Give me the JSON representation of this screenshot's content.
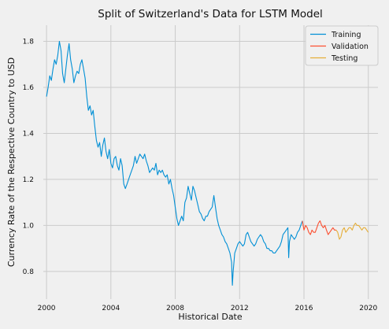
{
  "chart_data": {
    "type": "line",
    "title": "Split of Switzerland's Data for LSTM Model",
    "xlabel": "Historical Date",
    "ylabel": "Currency Rate of the Respective Country to USD",
    "xlim": [
      1999.8,
      2020.6
    ],
    "ylim": [
      0.68,
      1.87
    ],
    "xticks": [
      2000,
      2004,
      2008,
      2012,
      2016,
      2020
    ],
    "xtick_labels": [
      "2000",
      "2004",
      "2008",
      "2012",
      "2016",
      "2020"
    ],
    "yticks": [
      0.8,
      1.0,
      1.2,
      1.4,
      1.6,
      1.8
    ],
    "ytick_labels": [
      "0.8",
      "1.0",
      "1.2",
      "1.4",
      "1.6",
      "1.8"
    ],
    "grid": true,
    "legend_position": "top-right",
    "series": [
      {
        "name": "Training",
        "color": "#008fd5",
        "points": [
          [
            2000.0,
            1.56
          ],
          [
            2000.1,
            1.6
          ],
          [
            2000.2,
            1.65
          ],
          [
            2000.3,
            1.63
          ],
          [
            2000.4,
            1.68
          ],
          [
            2000.5,
            1.72
          ],
          [
            2000.6,
            1.7
          ],
          [
            2000.7,
            1.74
          ],
          [
            2000.8,
            1.8
          ],
          [
            2000.9,
            1.76
          ],
          [
            2001.0,
            1.66
          ],
          [
            2001.1,
            1.62
          ],
          [
            2001.2,
            1.68
          ],
          [
            2001.3,
            1.74
          ],
          [
            2001.4,
            1.79
          ],
          [
            2001.5,
            1.72
          ],
          [
            2001.6,
            1.68
          ],
          [
            2001.7,
            1.62
          ],
          [
            2001.8,
            1.65
          ],
          [
            2001.9,
            1.67
          ],
          [
            2002.0,
            1.66
          ],
          [
            2002.1,
            1.7
          ],
          [
            2002.2,
            1.72
          ],
          [
            2002.3,
            1.68
          ],
          [
            2002.4,
            1.64
          ],
          [
            2002.5,
            1.56
          ],
          [
            2002.6,
            1.5
          ],
          [
            2002.7,
            1.52
          ],
          [
            2002.8,
            1.48
          ],
          [
            2002.9,
            1.5
          ],
          [
            2003.0,
            1.43
          ],
          [
            2003.1,
            1.37
          ],
          [
            2003.2,
            1.34
          ],
          [
            2003.3,
            1.36
          ],
          [
            2003.4,
            1.3
          ],
          [
            2003.5,
            1.35
          ],
          [
            2003.6,
            1.38
          ],
          [
            2003.7,
            1.32
          ],
          [
            2003.8,
            1.29
          ],
          [
            2003.9,
            1.33
          ],
          [
            2004.0,
            1.27
          ],
          [
            2004.1,
            1.25
          ],
          [
            2004.2,
            1.29
          ],
          [
            2004.3,
            1.3
          ],
          [
            2004.4,
            1.26
          ],
          [
            2004.5,
            1.24
          ],
          [
            2004.6,
            1.29
          ],
          [
            2004.7,
            1.26
          ],
          [
            2004.8,
            1.18
          ],
          [
            2004.9,
            1.16
          ],
          [
            2005.0,
            1.18
          ],
          [
            2005.1,
            1.2
          ],
          [
            2005.2,
            1.22
          ],
          [
            2005.3,
            1.24
          ],
          [
            2005.4,
            1.26
          ],
          [
            2005.5,
            1.3
          ],
          [
            2005.6,
            1.27
          ],
          [
            2005.7,
            1.29
          ],
          [
            2005.8,
            1.31
          ],
          [
            2005.9,
            1.3
          ],
          [
            2006.0,
            1.29
          ],
          [
            2006.1,
            1.31
          ],
          [
            2006.2,
            1.28
          ],
          [
            2006.3,
            1.26
          ],
          [
            2006.4,
            1.23
          ],
          [
            2006.5,
            1.24
          ],
          [
            2006.6,
            1.25
          ],
          [
            2006.7,
            1.24
          ],
          [
            2006.8,
            1.27
          ],
          [
            2006.9,
            1.22
          ],
          [
            2007.0,
            1.24
          ],
          [
            2007.1,
            1.23
          ],
          [
            2007.2,
            1.24
          ],
          [
            2007.3,
            1.22
          ],
          [
            2007.4,
            1.21
          ],
          [
            2007.5,
            1.22
          ],
          [
            2007.6,
            1.18
          ],
          [
            2007.7,
            1.2
          ],
          [
            2007.8,
            1.16
          ],
          [
            2007.9,
            1.13
          ],
          [
            2008.0,
            1.08
          ],
          [
            2008.1,
            1.03
          ],
          [
            2008.2,
            1.0
          ],
          [
            2008.3,
            1.02
          ],
          [
            2008.4,
            1.04
          ],
          [
            2008.5,
            1.02
          ],
          [
            2008.6,
            1.1
          ],
          [
            2008.7,
            1.12
          ],
          [
            2008.8,
            1.17
          ],
          [
            2008.9,
            1.14
          ],
          [
            2009.0,
            1.11
          ],
          [
            2009.1,
            1.17
          ],
          [
            2009.2,
            1.15
          ],
          [
            2009.3,
            1.12
          ],
          [
            2009.4,
            1.09
          ],
          [
            2009.5,
            1.06
          ],
          [
            2009.6,
            1.05
          ],
          [
            2009.7,
            1.03
          ],
          [
            2009.8,
            1.02
          ],
          [
            2009.9,
            1.04
          ],
          [
            2010.0,
            1.04
          ],
          [
            2010.1,
            1.06
          ],
          [
            2010.2,
            1.07
          ],
          [
            2010.3,
            1.08
          ],
          [
            2010.4,
            1.13
          ],
          [
            2010.5,
            1.08
          ],
          [
            2010.6,
            1.03
          ],
          [
            2010.7,
            1.0
          ],
          [
            2010.8,
            0.98
          ],
          [
            2010.9,
            0.96
          ],
          [
            2011.0,
            0.95
          ],
          [
            2011.1,
            0.93
          ],
          [
            2011.2,
            0.92
          ],
          [
            2011.3,
            0.9
          ],
          [
            2011.4,
            0.88
          ],
          [
            2011.5,
            0.84
          ],
          [
            2011.55,
            0.74
          ],
          [
            2011.6,
            0.8
          ],
          [
            2011.7,
            0.88
          ],
          [
            2011.8,
            0.9
          ],
          [
            2011.9,
            0.92
          ],
          [
            2012.0,
            0.93
          ],
          [
            2012.1,
            0.92
          ],
          [
            2012.2,
            0.91
          ],
          [
            2012.3,
            0.92
          ],
          [
            2012.4,
            0.96
          ],
          [
            2012.5,
            0.97
          ],
          [
            2012.6,
            0.95
          ],
          [
            2012.7,
            0.93
          ],
          [
            2012.8,
            0.92
          ],
          [
            2012.9,
            0.91
          ],
          [
            2013.0,
            0.92
          ],
          [
            2013.1,
            0.94
          ],
          [
            2013.2,
            0.95
          ],
          [
            2013.3,
            0.96
          ],
          [
            2013.4,
            0.95
          ],
          [
            2013.5,
            0.93
          ],
          [
            2013.6,
            0.92
          ],
          [
            2013.7,
            0.9
          ],
          [
            2013.8,
            0.9
          ],
          [
            2013.9,
            0.89
          ],
          [
            2014.0,
            0.89
          ],
          [
            2014.1,
            0.88
          ],
          [
            2014.2,
            0.88
          ],
          [
            2014.3,
            0.89
          ],
          [
            2014.4,
            0.9
          ],
          [
            2014.5,
            0.91
          ],
          [
            2014.6,
            0.93
          ],
          [
            2014.7,
            0.96
          ],
          [
            2014.8,
            0.97
          ],
          [
            2014.9,
            0.98
          ],
          [
            2015.0,
            0.99
          ],
          [
            2015.05,
            0.86
          ],
          [
            2015.1,
            0.93
          ],
          [
            2015.2,
            0.96
          ],
          [
            2015.3,
            0.95
          ],
          [
            2015.4,
            0.94
          ],
          [
            2015.5,
            0.95
          ],
          [
            2015.6,
            0.97
          ],
          [
            2015.7,
            0.98
          ],
          [
            2015.8,
            1.0
          ],
          [
            2015.9,
            1.02
          ]
        ]
      },
      {
        "name": "Validation",
        "color": "#fc4f30",
        "points": [
          [
            2015.9,
            1.02
          ],
          [
            2016.0,
            0.98
          ],
          [
            2016.1,
            1.0
          ],
          [
            2016.2,
            0.99
          ],
          [
            2016.3,
            0.97
          ],
          [
            2016.4,
            0.96
          ],
          [
            2016.5,
            0.98
          ],
          [
            2016.6,
            0.97
          ],
          [
            2016.7,
            0.97
          ],
          [
            2016.8,
            0.99
          ],
          [
            2016.9,
            1.01
          ],
          [
            2017.0,
            1.02
          ],
          [
            2017.1,
            1.0
          ],
          [
            2017.2,
            0.99
          ],
          [
            2017.3,
            1.0
          ],
          [
            2017.4,
            0.98
          ],
          [
            2017.5,
            0.96
          ],
          [
            2017.6,
            0.97
          ],
          [
            2017.7,
            0.98
          ],
          [
            2017.8,
            0.99
          ],
          [
            2017.9,
            0.98
          ],
          [
            2018.0,
            0.98
          ]
        ]
      },
      {
        "name": "Testing",
        "color": "#e5ae38",
        "points": [
          [
            2018.0,
            0.98
          ],
          [
            2018.1,
            0.97
          ],
          [
            2018.2,
            0.94
          ],
          [
            2018.3,
            0.95
          ],
          [
            2018.4,
            0.98
          ],
          [
            2018.5,
            0.99
          ],
          [
            2018.6,
            0.97
          ],
          [
            2018.7,
            0.98
          ],
          [
            2018.8,
            0.99
          ],
          [
            2018.9,
            0.99
          ],
          [
            2019.0,
            0.98
          ],
          [
            2019.1,
            1.0
          ],
          [
            2019.2,
            1.01
          ],
          [
            2019.3,
            1.0
          ],
          [
            2019.4,
            1.0
          ],
          [
            2019.5,
            0.99
          ],
          [
            2019.6,
            0.98
          ],
          [
            2019.7,
            0.99
          ],
          [
            2019.8,
            0.99
          ],
          [
            2019.9,
            0.98
          ],
          [
            2020.0,
            0.97
          ]
        ]
      }
    ]
  }
}
